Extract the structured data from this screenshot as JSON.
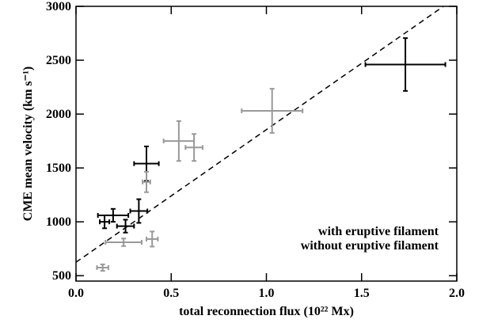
{
  "chart_data": {
    "type": "scatter",
    "xlabel": "total reconnection flux (10²² Mx)",
    "ylabel": "CME mean velocity (km s⁻¹)",
    "xlim": [
      0,
      2.0
    ],
    "ylim": [
      450,
      3000
    ],
    "xticks": [
      {
        "value": 0,
        "label": "0.0"
      },
      {
        "value": 0.5,
        "label": "0.5"
      },
      {
        "value": 1,
        "label": "1.0"
      },
      {
        "value": 1.5,
        "label": "1.5"
      },
      {
        "value": 2,
        "label": "2.0"
      }
    ],
    "yticks": [
      500,
      1000,
      1500,
      2000,
      2500,
      3000
    ],
    "legend": "lower right",
    "series": [
      {
        "name": "with eruptive filament",
        "color": "#000000",
        "x": [
          1.73,
          0.37,
          0.33,
          0.195,
          0.15,
          0.26
        ],
        "values": [
          2460,
          1540,
          1100,
          1060,
          1000,
          960
        ],
        "xerr": [
          0.21,
          0.065,
          0.045,
          0.08,
          0.025,
          0.045
        ],
        "yerr": [
          245,
          160,
          110,
          60,
          60,
          60
        ]
      },
      {
        "name": "without eruptive filament",
        "color": "#999999",
        "x": [
          1.03,
          0.54,
          0.62,
          0.37,
          0.25,
          0.4,
          0.14
        ],
        "values": [
          2030,
          1750,
          1690,
          1370,
          810,
          840,
          575
        ],
        "xerr": [
          0.16,
          0.08,
          0.045,
          0.02,
          0.095,
          0.03,
          0.03
        ],
        "yerr": [
          205,
          185,
          125,
          95,
          35,
          70,
          30
        ]
      }
    ],
    "fit_line": {
      "x": [
        0,
        1.93
      ],
      "y": [
        625,
        3000
      ]
    }
  }
}
